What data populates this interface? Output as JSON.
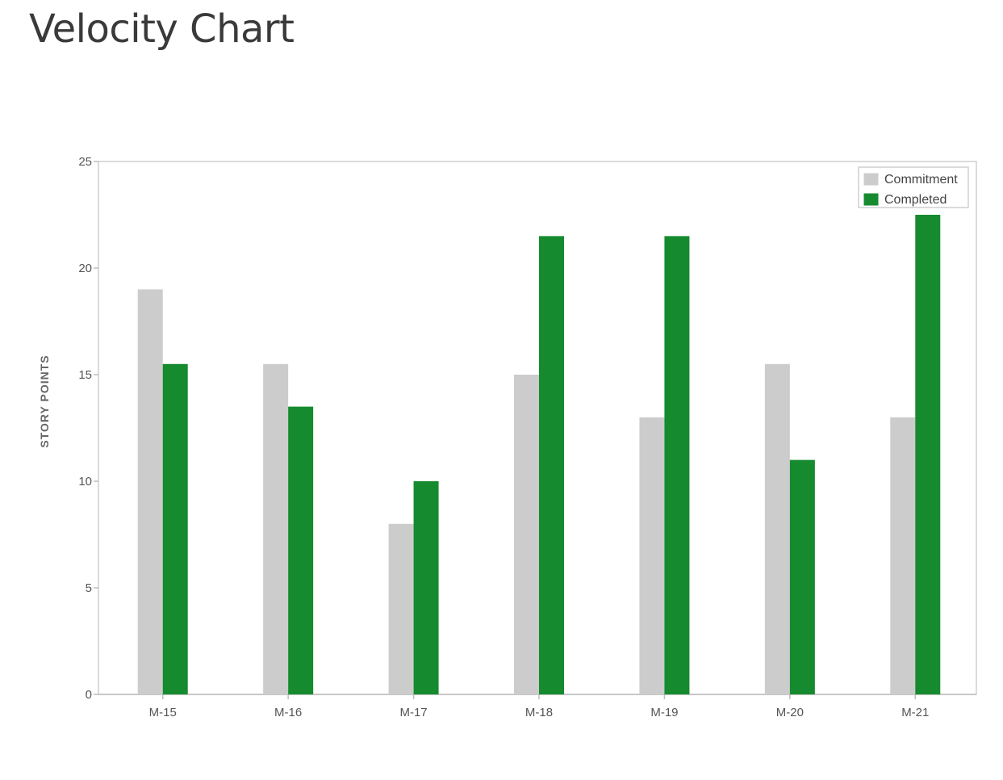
{
  "page": {
    "title": "Velocity Chart"
  },
  "chart_data": {
    "type": "bar",
    "title": "Velocity Chart",
    "xlabel": "",
    "ylabel": "STORY POINTS",
    "ylim": [
      0,
      25
    ],
    "yticks": [
      0,
      5,
      10,
      15,
      20,
      25
    ],
    "grid": false,
    "legend_position": "top-right",
    "categories": [
      "M-15",
      "M-16",
      "M-17",
      "M-18",
      "M-19",
      "M-20",
      "M-21"
    ],
    "series": [
      {
        "name": "Commitment",
        "color": "#cccccc",
        "values": [
          19,
          15.5,
          8,
          15,
          13,
          15.5,
          13
        ]
      },
      {
        "name": "Completed",
        "color": "#168a2e",
        "values": [
          15.5,
          13.5,
          10,
          21.5,
          21.5,
          11,
          22.5
        ]
      }
    ]
  }
}
